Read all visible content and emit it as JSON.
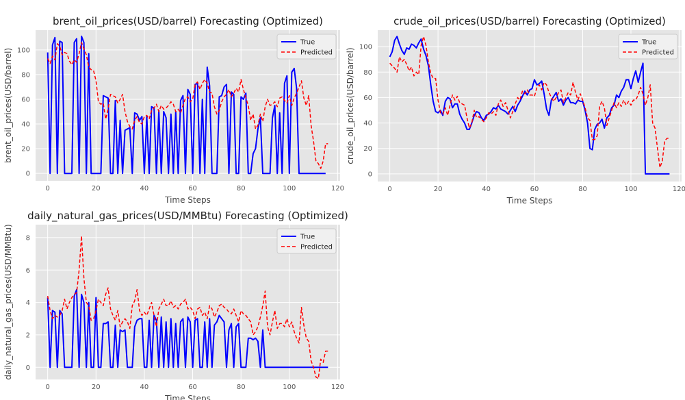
{
  "colors": {
    "figure_background": "#ffffff",
    "axes_background": "#e5e5e5",
    "grid": "#ffffff",
    "true_series": "#0000ff",
    "predicted_series": "#ff0000"
  },
  "chart_data": [
    {
      "type": "line",
      "title": "brent_oil_prices(USD/barrel) Forecasting (Optimized)",
      "xlabel": "Time Steps",
      "ylabel": "brent_oil_prices(USD/barrel)",
      "xlim": [
        -5,
        121
      ],
      "ylim": [
        -6,
        116
      ],
      "xticks": [
        0,
        20,
        40,
        60,
        80,
        100,
        120
      ],
      "yticks": [
        0,
        20,
        40,
        60,
        80,
        100
      ],
      "grid": true,
      "legend_position": "top-right",
      "x_start": 0,
      "series": [
        {
          "name": "True",
          "style": "solid",
          "values": [
            98,
            0,
            104,
            110,
            0,
            107,
            106,
            0,
            0,
            0,
            0,
            106,
            109,
            0,
            111,
            106,
            0,
            97,
            0,
            0,
            0,
            0,
            0,
            63,
            62,
            61,
            0,
            0,
            59,
            0,
            43,
            0,
            35,
            36,
            37,
            0,
            49,
            48,
            43,
            46,
            0,
            46,
            0,
            54,
            53,
            0,
            51,
            0,
            50,
            45,
            0,
            48,
            0,
            50,
            0,
            59,
            63,
            0,
            68,
            64,
            0,
            72,
            73,
            0,
            60,
            0,
            86,
            71,
            0,
            0,
            0,
            62,
            63,
            70,
            72,
            0,
            66,
            64,
            0,
            0,
            62,
            60,
            65,
            0,
            0,
            16,
            20,
            36,
            45,
            0,
            0,
            0,
            0,
            45,
            55,
            0,
            49,
            0,
            73,
            79,
            0,
            82,
            85,
            69,
            0,
            0,
            0,
            0,
            0,
            0,
            0,
            0,
            0,
            0,
            0,
            0
          ]
        },
        {
          "name": "Predicted",
          "style": "dashed",
          "values": [
            93,
            89,
            95,
            92,
            105,
            103,
            96,
            98,
            97,
            91,
            88,
            92,
            90,
            97,
            106,
            101,
            96,
            86,
            84,
            83,
            75,
            58,
            56,
            57,
            44,
            52,
            64,
            63,
            62,
            57,
            60,
            64,
            50,
            42,
            38,
            36,
            43,
            46,
            41,
            40,
            46,
            47,
            44,
            51,
            53,
            56,
            50,
            55,
            52,
            53,
            55,
            58,
            56,
            50,
            52,
            49,
            55,
            61,
            62,
            58,
            60,
            72,
            74,
            68,
            73,
            76,
            73,
            66,
            65,
            54,
            48,
            51,
            58,
            62,
            64,
            68,
            62,
            65,
            69,
            66,
            76,
            68,
            61,
            55,
            43,
            48,
            36,
            39,
            48,
            42,
            54,
            60,
            55,
            56,
            58,
            54,
            61,
            62,
            59,
            57,
            63,
            55,
            61,
            65,
            70,
            75,
            61,
            55,
            63,
            39,
            26,
            10,
            8,
            4,
            10,
            24,
            24
          ]
        }
      ]
    },
    {
      "type": "line",
      "title": "crude_oil_prices(USD/barrel) Forecasting (Optimized)",
      "xlabel": "Time Steps",
      "ylabel": "crude_oil_prices(USD/barrel)",
      "xlim": [
        -5,
        121
      ],
      "ylim": [
        -6,
        113
      ],
      "xticks": [
        0,
        20,
        40,
        60,
        80,
        100,
        120
      ],
      "yticks": [
        0,
        20,
        40,
        60,
        80,
        100
      ],
      "grid": true,
      "legend_position": "top-right",
      "x_start": 0,
      "series": [
        {
          "name": "True",
          "style": "solid",
          "values": [
            92,
            96,
            105,
            108,
            102,
            97,
            94,
            99,
            98,
            102,
            101,
            99,
            103,
            106,
            98,
            93,
            85,
            70,
            57,
            49,
            48,
            50,
            46,
            57,
            60,
            59,
            52,
            55,
            55,
            47,
            43,
            40,
            35,
            35,
            40,
            46,
            49,
            48,
            44,
            42,
            46,
            47,
            49,
            52,
            51,
            54,
            51,
            50,
            49,
            47,
            50,
            53,
            49,
            54,
            57,
            61,
            65,
            62,
            66,
            67,
            74,
            70,
            71,
            73,
            63,
            51,
            46,
            58,
            61,
            64,
            57,
            59,
            54,
            58,
            60,
            56,
            56,
            55,
            58,
            57,
            57,
            50,
            40,
            20,
            19,
            35,
            39,
            40,
            43,
            36,
            44,
            46,
            52,
            54,
            62,
            60,
            65,
            68,
            74,
            74,
            67,
            75,
            81,
            72,
            80,
            87,
            0,
            0,
            0,
            0,
            0,
            0,
            0,
            0,
            0,
            0,
            0
          ]
        },
        {
          "name": "Predicted",
          "style": "dashed",
          "values": [
            87,
            85,
            83,
            80,
            92,
            88,
            90,
            86,
            81,
            84,
            77,
            80,
            78,
            101,
            108,
            101,
            88,
            79,
            75,
            75,
            58,
            48,
            47,
            52,
            46,
            54,
            62,
            58,
            61,
            56,
            55,
            54,
            44,
            36,
            40,
            50,
            44,
            45,
            43,
            41,
            44,
            48,
            47,
            49,
            46,
            55,
            58,
            53,
            56,
            50,
            44,
            49,
            55,
            60,
            58,
            65,
            63,
            66,
            62,
            62,
            61,
            68,
            70,
            66,
            72,
            70,
            64,
            60,
            57,
            60,
            64,
            66,
            56,
            60,
            64,
            62,
            72,
            64,
            58,
            63,
            58,
            52,
            44,
            42,
            27,
            27,
            30,
            53,
            57,
            52,
            38,
            44,
            50,
            56,
            52,
            56,
            53,
            58,
            54,
            57,
            54,
            58,
            58,
            62,
            68,
            63,
            54,
            60,
            70,
            40,
            36,
            20,
            5,
            10,
            26,
            28,
            28
          ]
        }
      ]
    },
    {
      "type": "line",
      "title": "daily_natural_gas_prices(USD/MMBtu) Forecasting (Optimized)",
      "xlabel": "Time Steps",
      "ylabel": "daily_natural_gas_prices(USD/MMBtu)",
      "xlim": [
        -5,
        121
      ],
      "ylim": [
        -0.75,
        8.8
      ],
      "xticks": [
        0,
        20,
        40,
        60,
        80,
        100,
        120
      ],
      "yticks": [
        0,
        2,
        4,
        6,
        8
      ],
      "grid": true,
      "legend_position": "top-right",
      "x_start": 0,
      "series": [
        {
          "name": "True",
          "style": "solid",
          "values": [
            4.3,
            0,
            3.5,
            3.4,
            0,
            3.5,
            3.3,
            0,
            0,
            0,
            0,
            4.4,
            4.8,
            0,
            4.5,
            4.0,
            0,
            4.0,
            0,
            0,
            4.3,
            0,
            0,
            2.7,
            2.7,
            2.8,
            0,
            0,
            2.6,
            0,
            2.3,
            2.2,
            2.3,
            0,
            0,
            0,
            2.5,
            2.9,
            3.0,
            3.0,
            0,
            0,
            2.9,
            0,
            3.2,
            2.9,
            0,
            3.1,
            0,
            2.8,
            0,
            3.0,
            0,
            2.7,
            0,
            2.8,
            3.0,
            0,
            3.1,
            2.8,
            0,
            2.9,
            3.0,
            0,
            0,
            2.8,
            0,
            3.0,
            0,
            2.6,
            2.8,
            3.2,
            3.0,
            2.8,
            0,
            2.3,
            2.7,
            0,
            2.5,
            2.7,
            0,
            0,
            0,
            1.8,
            1.8,
            1.7,
            1.8,
            1.6,
            0,
            2.3,
            0,
            0,
            0,
            0,
            0,
            0,
            0,
            0,
            0,
            0,
            0,
            0,
            0,
            0,
            0,
            0,
            0,
            0,
            0,
            0,
            0,
            0,
            0,
            0,
            0,
            0,
            0
          ]
        },
        {
          "name": "Predicted",
          "style": "dashed",
          "values": [
            4.4,
            3.5,
            3.0,
            3.2,
            3.1,
            3.2,
            3.5,
            4.2,
            3.6,
            4.0,
            4.3,
            4.5,
            4.6,
            6.0,
            8.1,
            5.5,
            4.0,
            3.8,
            2.9,
            3.0,
            3.5,
            4.2,
            4.0,
            3.8,
            4.5,
            4.9,
            3.6,
            3.2,
            2.9,
            3.5,
            2.5,
            2.8,
            3.0,
            2.8,
            2.4,
            3.8,
            4.1,
            4.8,
            3.5,
            3.2,
            3.4,
            3.2,
            3.6,
            4.0,
            3.2,
            2.5,
            3.6,
            3.9,
            4.2,
            3.8,
            3.8,
            4.1,
            3.7,
            3.8,
            3.6,
            3.9,
            4.0,
            4.2,
            3.6,
            3.7,
            3.5,
            3.0,
            3.6,
            3.7,
            3.2,
            3.4,
            3.0,
            3.8,
            3.6,
            3.1,
            3.4,
            3.8,
            3.9,
            3.7,
            3.6,
            3.4,
            3.3,
            3.6,
            3.2,
            2.8,
            3.5,
            3.3,
            3.2,
            3.0,
            2.8,
            2.0,
            2.2,
            2.5,
            3.1,
            3.8,
            4.7,
            2.5,
            2.0,
            2.8,
            3.5,
            2.4,
            2.7,
            2.7,
            2.5,
            3.0,
            2.5,
            2.8,
            2.2,
            1.8,
            1.5,
            3.7,
            2.6,
            1.8,
            1.6,
            0.4,
            0.0,
            -0.6,
            -0.7,
            0.5,
            0.3,
            1.0,
            1.0
          ]
        }
      ]
    }
  ]
}
